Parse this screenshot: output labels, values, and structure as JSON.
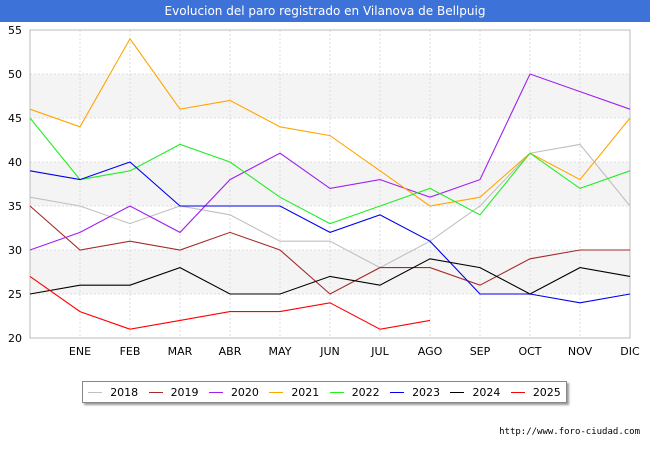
{
  "page_title": "Evolucion del paro registrado en Vilanova de Bellpuig",
  "source_text": "http://www.foro-ciudad.com",
  "chart_data": {
    "type": "line",
    "title": "Evolucion del paro registrado en Vilanova de Bellpuig",
    "xlabel": "",
    "ylabel": "",
    "categories": [
      "",
      "ENE",
      "FEB",
      "MAR",
      "ABR",
      "MAY",
      "JUN",
      "JUL",
      "AGO",
      "SEP",
      "OCT",
      "NOV",
      "DIC"
    ],
    "ylim": [
      20,
      55
    ],
    "yticks": [
      20,
      25,
      30,
      35,
      40,
      45,
      50,
      55
    ],
    "grid": true,
    "legend_position": "bottom",
    "series": [
      {
        "name": "2018",
        "color": "#c0c0c0",
        "values": [
          36,
          35,
          33,
          35,
          34,
          31,
          31,
          28,
          31,
          35,
          41,
          42,
          35
        ]
      },
      {
        "name": "2019",
        "color": "#a52a2a",
        "values": [
          35,
          30,
          31,
          30,
          32,
          30,
          25,
          28,
          28,
          26,
          29,
          30,
          30
        ]
      },
      {
        "name": "2020",
        "color": "#a020f0",
        "values": [
          30,
          32,
          35,
          32,
          38,
          41,
          37,
          38,
          36,
          38,
          50,
          48,
          46
        ]
      },
      {
        "name": "2021",
        "color": "#ffa500",
        "values": [
          46,
          44,
          54,
          46,
          47,
          44,
          43,
          39,
          35,
          36,
          41,
          38,
          45
        ]
      },
      {
        "name": "2022",
        "color": "#22ee22",
        "values": [
          45,
          38,
          39,
          42,
          40,
          36,
          33,
          35,
          37,
          34,
          41,
          37,
          39
        ]
      },
      {
        "name": "2023",
        "color": "#0000ee",
        "values": [
          39,
          38,
          40,
          35,
          35,
          35,
          32,
          34,
          31,
          25,
          25,
          24,
          25
        ]
      },
      {
        "name": "2024",
        "color": "#000000",
        "values": [
          25,
          26,
          26,
          28,
          25,
          25,
          27,
          26,
          29,
          28,
          25,
          28,
          27
        ]
      },
      {
        "name": "2025",
        "color": "#ff0000",
        "values": [
          27,
          23,
          21,
          22,
          23,
          23,
          24,
          21,
          22,
          null,
          null,
          null,
          null
        ]
      }
    ]
  }
}
